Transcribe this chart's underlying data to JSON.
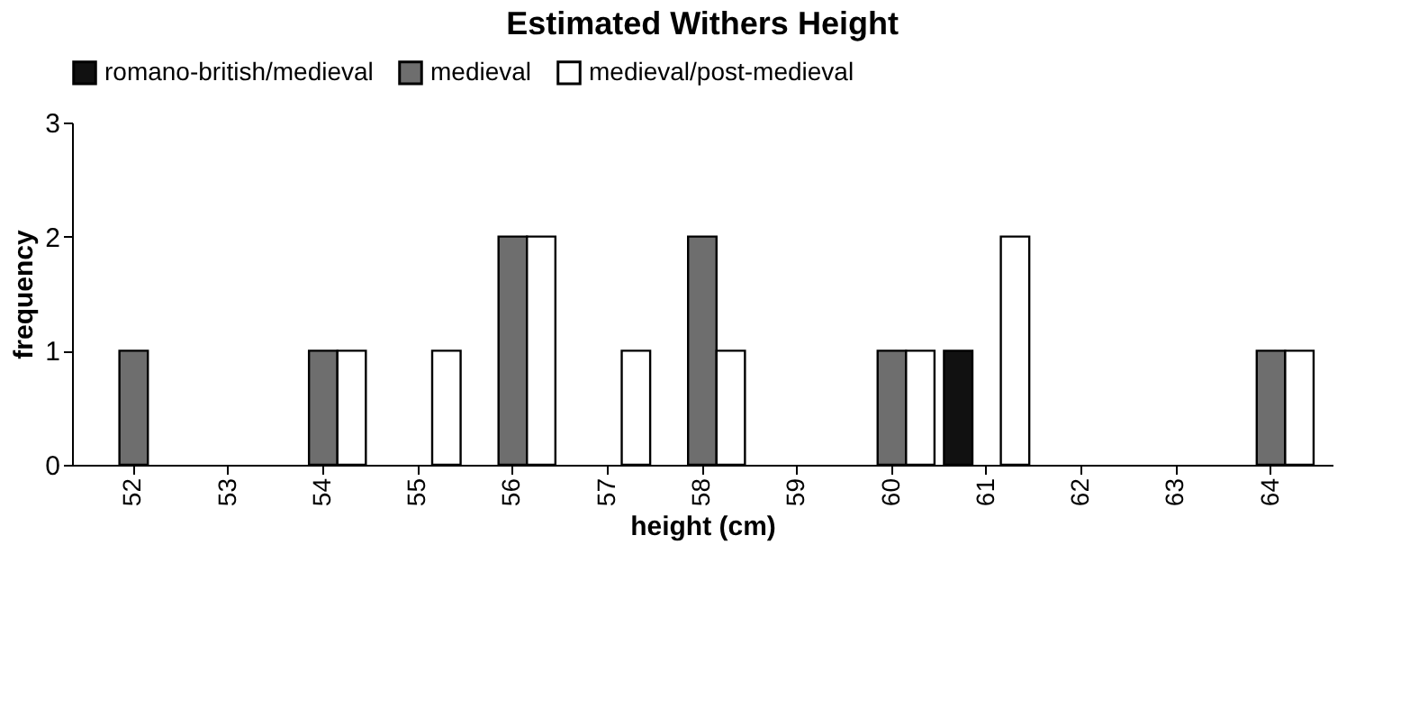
{
  "chart_data": {
    "type": "bar",
    "title": "Estimated Withers Height",
    "xlabel": "height (cm)",
    "ylabel": "frequency",
    "categories": [
      "52",
      "53",
      "54",
      "55",
      "56",
      "57",
      "58",
      "59",
      "60",
      "61",
      "62",
      "63",
      "64"
    ],
    "series": [
      {
        "name": "romano-british/medieval",
        "color": "#111111",
        "values": [
          null,
          null,
          null,
          null,
          null,
          null,
          null,
          null,
          null,
          1,
          null,
          null,
          null
        ]
      },
      {
        "name": "medieval",
        "color": "#6e6e6e",
        "values": [
          1,
          null,
          1,
          null,
          2,
          null,
          2,
          null,
          1,
          null,
          null,
          null,
          1
        ]
      },
      {
        "name": "medieval/post-medieval",
        "color": "#ffffff",
        "values": [
          null,
          null,
          1,
          1,
          2,
          1,
          1,
          null,
          1,
          2,
          null,
          null,
          1
        ]
      }
    ],
    "ylim": [
      0,
      3
    ],
    "yticks": [
      0,
      1,
      2,
      3
    ],
    "grid": false,
    "legend": "top"
  }
}
